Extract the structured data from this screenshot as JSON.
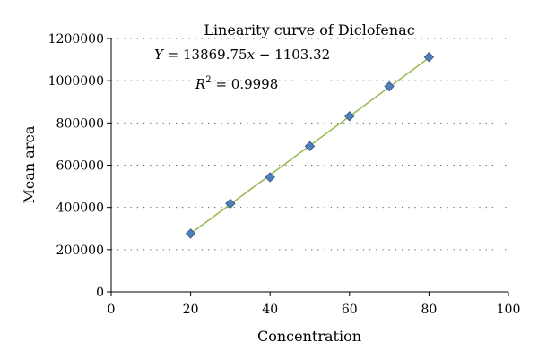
{
  "chart_data": {
    "type": "scatter",
    "title": "Linearity curve of Diclofenac",
    "xlabel": "Concentration",
    "ylabel": "Mean area",
    "xlim": [
      0,
      100
    ],
    "ylim": [
      0,
      1200000
    ],
    "x_ticks": [
      0,
      20,
      40,
      60,
      80,
      100
    ],
    "y_ticks": [
      0,
      200000,
      400000,
      600000,
      800000,
      1000000,
      1200000
    ],
    "x_tick_labels": [
      "0",
      "20",
      "40",
      "60",
      "80",
      "100"
    ],
    "y_tick_labels": [
      "0",
      "200000",
      "400000",
      "600000",
      "800000",
      "1000000",
      "1200000"
    ],
    "grid": "horizontal dotted",
    "series": [
      {
        "x": [
          20,
          30,
          40,
          50,
          60,
          70,
          80
        ],
        "y": [
          276000,
          418000,
          543000,
          690000,
          832000,
          973000,
          1112000
        ],
        "marker": "diamond",
        "color": "#4f81bd"
      }
    ],
    "trendline": {
      "slope": 13869.75,
      "intercept": -1103.32,
      "x_range": [
        20,
        80
      ],
      "color": "#9bbb59"
    },
    "annotations": {
      "equation_y": "Y",
      "equation_x": "x",
      "equation_rest_1": " = 13869.75",
      "equation_rest_2": " − 1103.32",
      "r2_r": "R",
      "r2_sup": "2",
      "r2_value": " = 0.9998"
    }
  }
}
